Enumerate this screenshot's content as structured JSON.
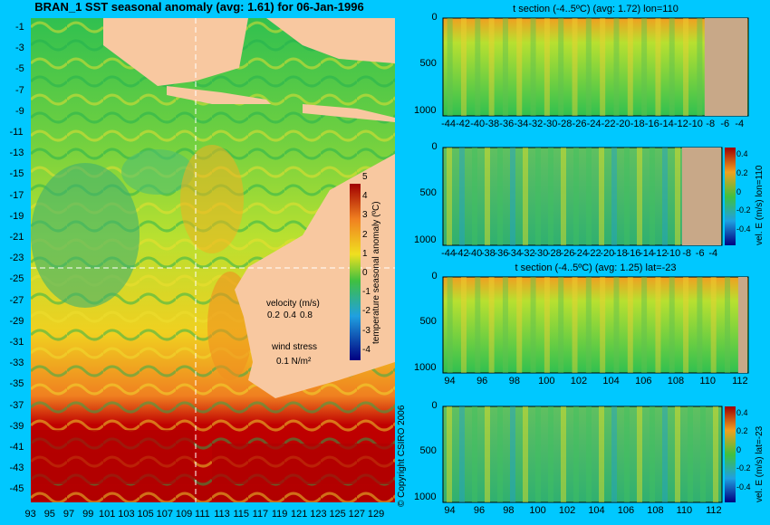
{
  "title": "BRAN_1 SST seasonal anomaly (avg: 1.61) for 06-Jan-1996",
  "copyright": "© Copyright CSIRO 2006",
  "colors": {
    "background": "#00c8ff",
    "land": "#f8c8a0",
    "land_section": "#c8a888"
  },
  "map": {
    "lat_ticks": [
      "-1",
      "-3",
      "-5",
      "-7",
      "-9",
      "-11",
      "-13",
      "-15",
      "-17",
      "-19",
      "-21",
      "-23",
      "-25",
      "-27",
      "-29",
      "-31",
      "-33",
      "-35",
      "-37",
      "-39",
      "-41",
      "-43",
      "-45"
    ],
    "lon_ticks": [
      "93",
      "95",
      "97",
      "99",
      "101",
      "103",
      "105",
      "107",
      "109",
      "111",
      "113",
      "115",
      "117",
      "119",
      "121",
      "123",
      "125",
      "127",
      "129"
    ],
    "colorbar": {
      "label": "temperature seasonal anomaly (ºC)",
      "ticks": [
        "5",
        "4",
        "3",
        "2",
        "1",
        "0",
        "-1",
        "-2",
        "-3",
        "-4"
      ]
    },
    "velocity_label": "velocity (m/s)",
    "velocity_values": [
      "0.2",
      "0.4",
      "0.8"
    ],
    "wind_label": "wind stress",
    "wind_value": "0.1 N/m²"
  },
  "sections": [
    {
      "title": "t section (-4..5ºC) (avg: 1.72) lon=110",
      "y_ticks": [
        "0",
        "500",
        "1000"
      ],
      "x_ticks": [
        "-44",
        "-42",
        "-40",
        "-38",
        "-36",
        "-34",
        "-32",
        "-30",
        "-28",
        "-26",
        "-24",
        "-22",
        "-20",
        "-18",
        "-16",
        "-14",
        "-12",
        "-10",
        "-8",
        "-6",
        "-4"
      ]
    },
    {
      "title": "",
      "y_ticks": [
        "0",
        "500",
        "1000"
      ],
      "x_ticks": [
        "-44",
        "-42",
        "-40",
        "-38",
        "-36",
        "-34",
        "-32",
        "-30",
        "-28",
        "-26",
        "-24",
        "-22",
        "-20",
        "-18",
        "-16",
        "-14",
        "-12",
        "-10",
        "-8",
        "-6",
        "-4"
      ],
      "colorbar_label": "vel. E (m/s) lon=110",
      "colorbar_ticks": [
        "0.4",
        "0.2",
        "0",
        "-0.2",
        "-0.4"
      ]
    },
    {
      "title": "t section (-4..5ºC) (avg: 1.25) lat=-23",
      "y_ticks": [
        "0",
        "500",
        "1000"
      ],
      "x_ticks": [
        "94",
        "96",
        "98",
        "100",
        "102",
        "104",
        "106",
        "108",
        "110",
        "112"
      ]
    },
    {
      "title": "",
      "y_ticks": [
        "0",
        "500",
        "1000"
      ],
      "x_ticks": [
        "94",
        "96",
        "98",
        "100",
        "102",
        "104",
        "106",
        "108",
        "110",
        "112"
      ],
      "colorbar_label": "vel. E (m/s) lat=-23",
      "colorbar_ticks": [
        "0.4",
        "0.2",
        "0",
        "-0.2",
        "-0.4"
      ]
    }
  ],
  "chart_data": [
    {
      "type": "heatmap",
      "title": "BRAN_1 SST seasonal anomaly (avg: 1.61) for 06-Jan-1996",
      "xlim": [
        93,
        130
      ],
      "ylim": [
        -45,
        0
      ],
      "color_range": [
        -4,
        5
      ],
      "colorbar_label": "temperature seasonal anomaly (ºC)"
    },
    {
      "type": "heatmap",
      "title": "t section (-4..5ºC) (avg: 1.72) lon=110",
      "xlim": [
        -45,
        -3
      ],
      "ylim": [
        1050,
        0
      ],
      "color_range": [
        -4,
        5
      ]
    },
    {
      "type": "heatmap",
      "title": "",
      "xlim": [
        -45,
        -3
      ],
      "ylim": [
        1050,
        0
      ],
      "color_range": [
        -0.4,
        0.4
      ],
      "colorbar_label": "vel. E (m/s) lon=110"
    },
    {
      "type": "heatmap",
      "title": "t section (-4..5ºC) (avg: 1.25) lat=-23",
      "xlim": [
        93,
        114
      ],
      "ylim": [
        1050,
        0
      ],
      "color_range": [
        -4,
        5
      ]
    },
    {
      "type": "heatmap",
      "title": "",
      "xlim": [
        93,
        114
      ],
      "ylim": [
        1050,
        0
      ],
      "color_range": [
        -0.4,
        0.4
      ],
      "colorbar_label": "vel. E (m/s) lat=-23"
    }
  ]
}
